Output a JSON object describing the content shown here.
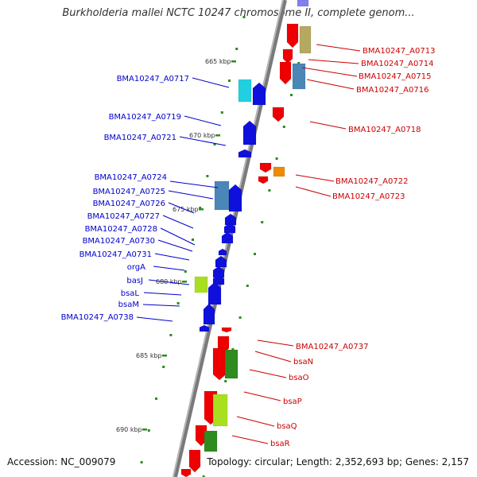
{
  "title": "Burkholderia mallei NCTC 10247 chromosome II, complete genom...",
  "accession": "Accession: NC_009079",
  "topology": "Topology: circular; Length: 2,352,693 bp; Genes: 2,157",
  "colors": {
    "left_labels": "#0000cc",
    "right_labels": "#cc0000",
    "backbone": "#888888",
    "tick_dots": "#2e8b20",
    "red_gene": "#ee0000",
    "blue_gene": "#1010dd"
  },
  "ticks": [
    {
      "label": "665 kbp"
    },
    {
      "label": "670 kbp"
    },
    {
      "label": "675 kbp"
    },
    {
      "label": "680 kbp"
    },
    {
      "label": "685 kbp"
    },
    {
      "label": "690 kbp"
    }
  ],
  "left_labels": [
    {
      "text": "BMA10247_A0717"
    },
    {
      "text": "BMA10247_A0719"
    },
    {
      "text": "BMA10247_A0721"
    },
    {
      "text": "BMA10247_A0724"
    },
    {
      "text": "BMA10247_A0725"
    },
    {
      "text": "BMA10247_A0726"
    },
    {
      "text": "BMA10247_A0727"
    },
    {
      "text": "BMA10247_A0728"
    },
    {
      "text": "BMA10247_A0730"
    },
    {
      "text": "BMA10247_A0731"
    },
    {
      "text": "orgA"
    },
    {
      "text": "basJ"
    },
    {
      "text": "bsaL"
    },
    {
      "text": "bsaM"
    },
    {
      "text": "BMA10247_A0738"
    }
  ],
  "right_labels": [
    {
      "text": "BMA10247_A0713"
    },
    {
      "text": "BMA10247_A0714"
    },
    {
      "text": "BMA10247_A0715"
    },
    {
      "text": "BMA10247_A0716"
    },
    {
      "text": "BMA10247_A0718"
    },
    {
      "text": "BMA10247_A0722"
    },
    {
      "text": "BMA10247_A0723"
    },
    {
      "text": "BMA10247_A0737"
    },
    {
      "text": "bsaN"
    },
    {
      "text": "bsaO"
    },
    {
      "text": "bsaP"
    },
    {
      "text": "bsaQ"
    },
    {
      "text": "bsaR"
    }
  ]
}
